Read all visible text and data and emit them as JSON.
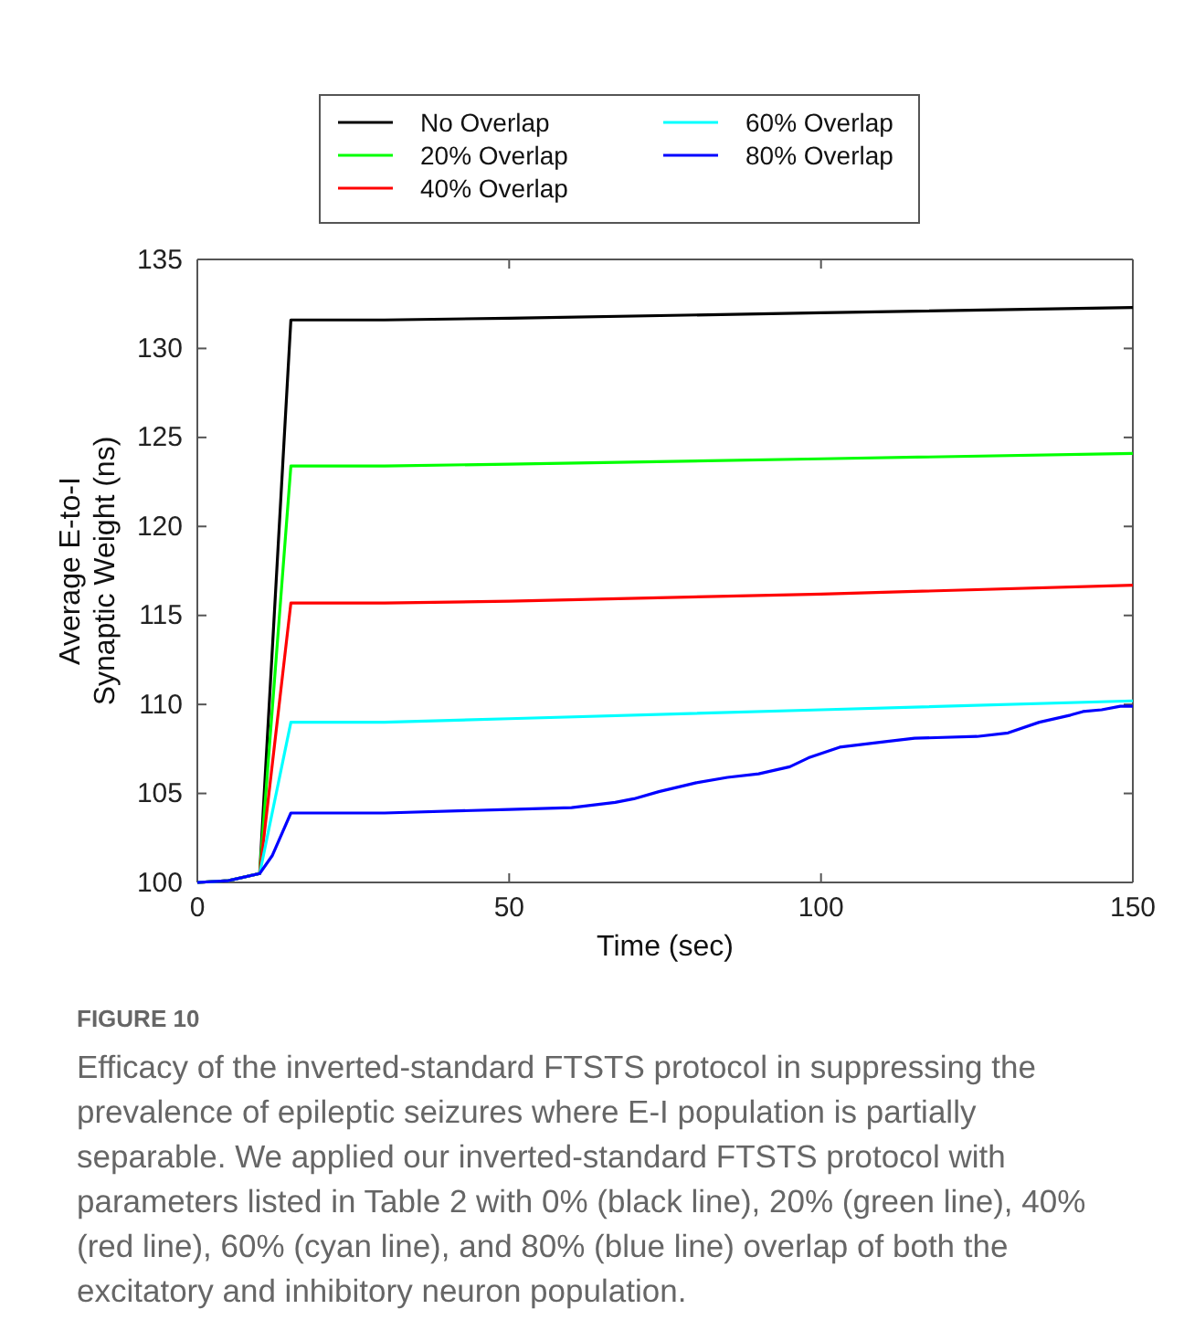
{
  "chart_data": {
    "type": "line",
    "xlabel": "Time (sec)",
    "ylabel": "Average E-to-I\nSynaptic Weight (ns)",
    "x": [
      0,
      5,
      10,
      15,
      30,
      50,
      100,
      150
    ],
    "xlim": [
      0,
      150
    ],
    "xticks": [
      0,
      50,
      100,
      150
    ],
    "ylim": [
      100,
      135
    ],
    "yticks": [
      100,
      105,
      110,
      115,
      120,
      125,
      130,
      135
    ],
    "grid": false,
    "legend": "top",
    "line_style": "solid",
    "marker": "none",
    "series": [
      {
        "name": "No Overlap",
        "color": "#000000",
        "values": [
          100,
          100.1,
          100.5,
          131.6,
          131.6,
          131.7,
          132,
          132.3
        ]
      },
      {
        "name": "20% Overlap",
        "color": "#00ff00",
        "values": [
          100,
          100.1,
          100.5,
          123.4,
          123.4,
          123.5,
          123.8,
          124.1
        ]
      },
      {
        "name": "40% Overlap",
        "color": "#ff0000",
        "values": [
          100,
          100.1,
          100.5,
          115.7,
          115.7,
          115.8,
          116.2,
          116.7
        ]
      },
      {
        "name": "60% Overlap",
        "color": "#00ffff",
        "values": [
          100,
          100.1,
          100.5,
          109,
          109,
          109.2,
          109.7,
          110.2
        ]
      },
      {
        "name": "80% Overlap",
        "color": "#0000ff",
        "x": [
          0,
          5,
          10,
          12,
          15,
          30,
          50,
          60,
          67,
          70,
          74,
          80,
          85,
          90,
          95,
          98,
          103,
          110,
          115,
          125,
          130,
          135,
          140,
          142,
          145,
          148,
          150
        ],
        "values": [
          100,
          100.1,
          100.5,
          101.5,
          103.9,
          103.9,
          104.1,
          104.2,
          104.5,
          104.7,
          105.1,
          105.6,
          105.9,
          106.1,
          106.5,
          107,
          107.6,
          107.9,
          108.1,
          108.2,
          108.4,
          109,
          109.4,
          109.6,
          109.7,
          109.9,
          109.9
        ]
      }
    ],
    "annotations": [
      "FIGURE 10",
      "Efficacy of the inverted-standard FTSTS protocol in suppressing the prevalence of epileptic seizures where E-I population is partially separable. We applied our inverted-standard FTSTS protocol with parameters listed in Table 2 with 0% (black line), 20% (green line), 40% (red line), 60% (cyan line), and 80% (blue line) overlap of both the excitatory and inhibitory neuron population."
    ]
  }
}
